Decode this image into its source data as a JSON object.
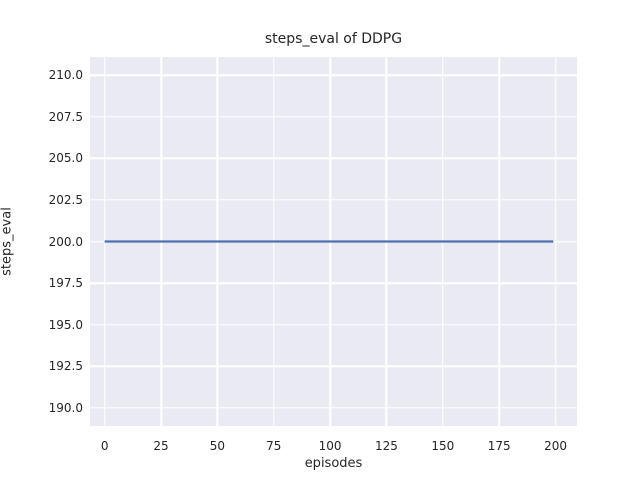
{
  "chart_data": {
    "type": "line",
    "title": "steps_eval of DDPG",
    "xlabel": "episodes",
    "ylabel": "steps_eval",
    "xlim": [
      -6.5,
      209.5
    ],
    "ylim": [
      188.9,
      211.1
    ],
    "x_ticks": [
      0,
      25,
      50,
      75,
      100,
      125,
      150,
      175,
      200
    ],
    "y_tick_labels": [
      "190.0",
      "192.5",
      "195.0",
      "197.5",
      "200.0",
      "202.5",
      "205.0",
      "207.5",
      "210.0"
    ],
    "grid": true,
    "legend": "none",
    "plot_bg_color": "#eaeaf2",
    "gridline_color": "#ffffff",
    "text_color": "#262626",
    "series": [
      {
        "name": "DDPG steps_eval",
        "color": "#4C72B0",
        "x": [
          0,
          199
        ],
        "y": [
          200,
          200
        ]
      }
    ]
  }
}
